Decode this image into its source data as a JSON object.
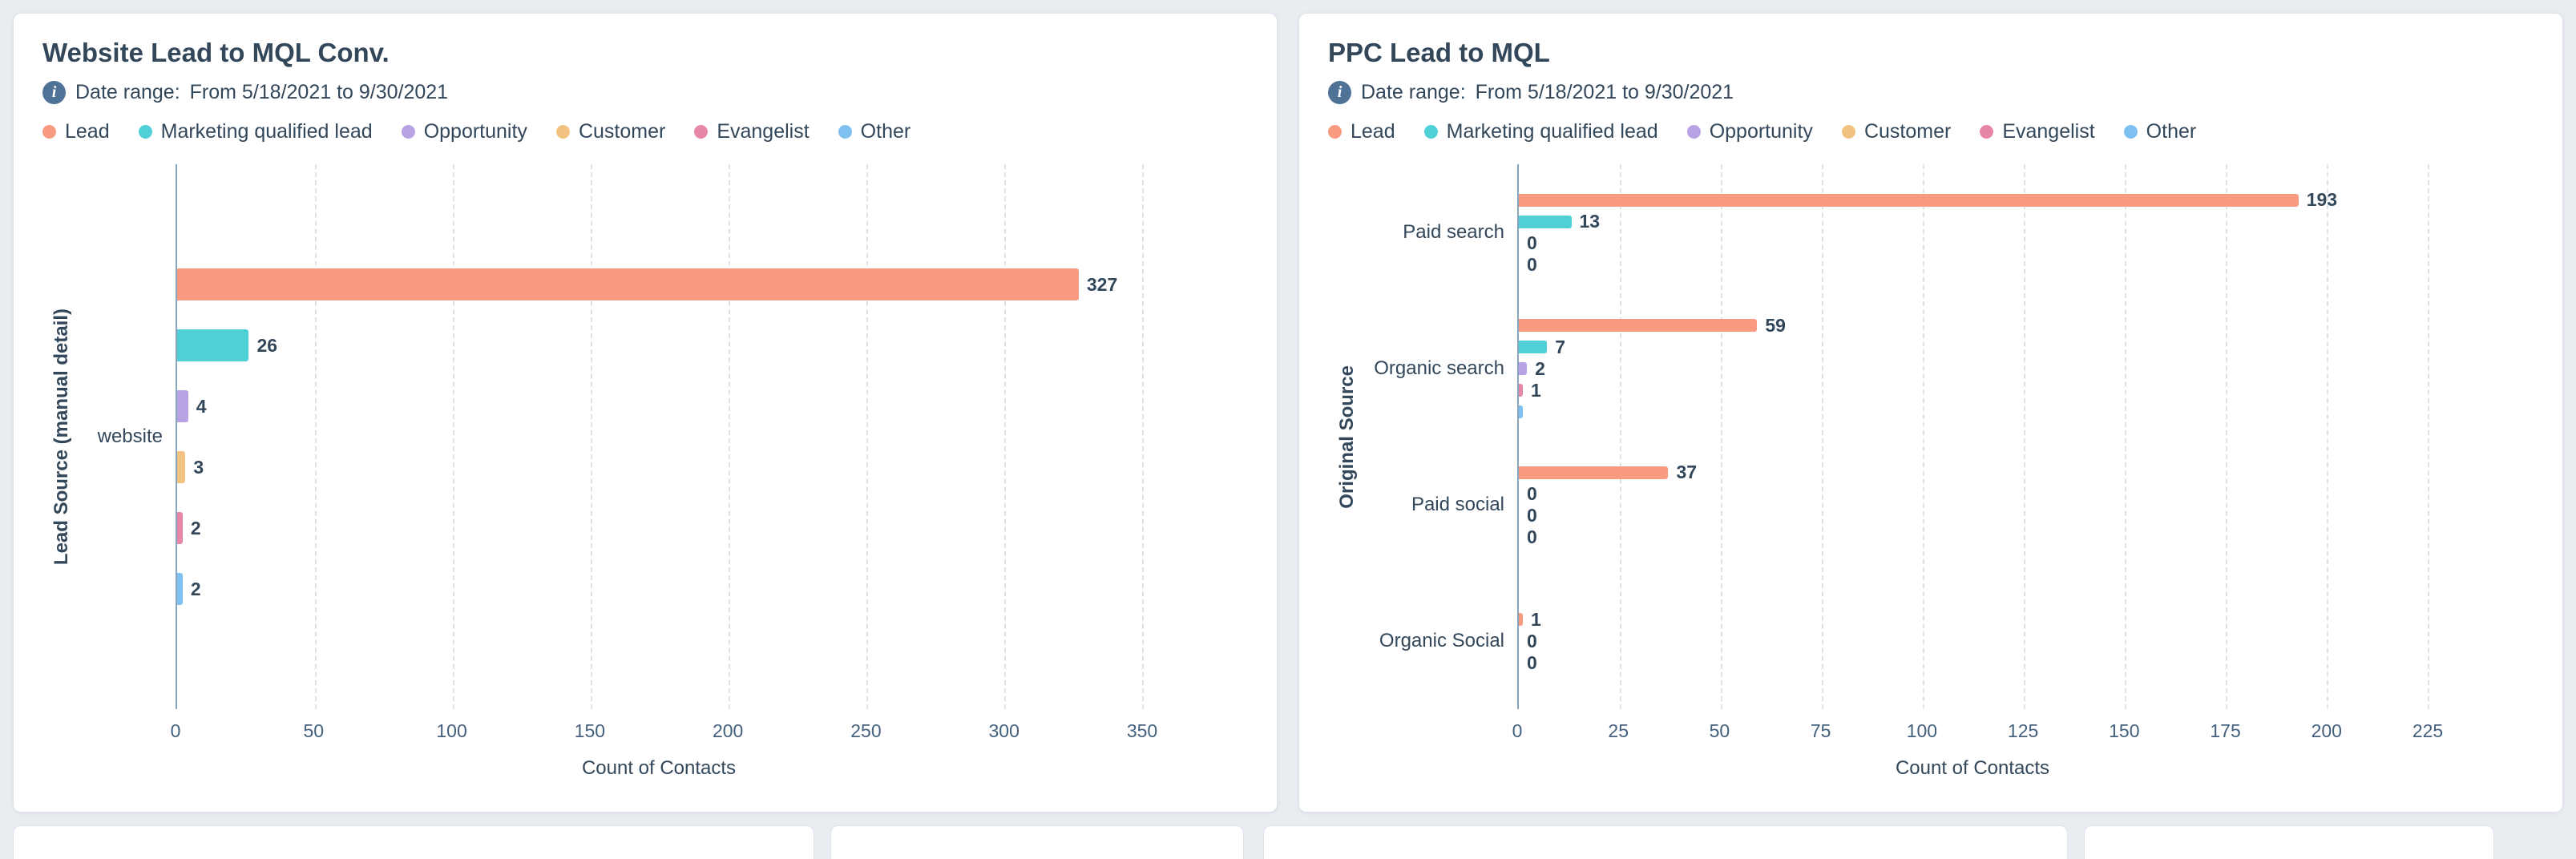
{
  "palette": {
    "page_bg": "#e9edf2",
    "card_bg": "#ffffff",
    "card_border": "#dfe3eb",
    "text": "#33475b",
    "tick_text": "#44607d",
    "axis_line": "#8ba4bd",
    "gridline": "#dce3eb",
    "info_icon": "#4f7396"
  },
  "series_colors": {
    "Lead": "#f89b80",
    "Marketing qualified lead": "#4fd0d7",
    "Opportunity": "#b7a2e3",
    "Customer": "#f2c380",
    "Evangelist": "#e886a8",
    "Other": "#7fc0f2"
  },
  "cards": [
    {
      "title": "Website Lead to MQL Conv.",
      "date_range_label": "Date range:",
      "date_range_value": "From 5/18/2021 to 9/30/2021",
      "legend": [
        "Lead",
        "Marketing qualified lead",
        "Opportunity",
        "Customer",
        "Evangelist",
        "Other"
      ]
    },
    {
      "title": "PPC Lead to MQL",
      "date_range_label": "Date range:",
      "date_range_value": "From 5/18/2021 to 9/30/2021",
      "legend": [
        "Lead",
        "Marketing qualified lead",
        "Opportunity",
        "Customer",
        "Evangelist",
        "Other"
      ]
    }
  ],
  "chart_data": [
    {
      "type": "bar",
      "orientation": "horizontal",
      "title": "Website Lead to MQL Conv.",
      "xlabel": "Count of Contacts",
      "ylabel": "Lead Source (manual detail)",
      "xlim": [
        0,
        350
      ],
      "xticks": [
        0,
        50,
        100,
        150,
        200,
        250,
        300,
        350
      ],
      "grid": "vertical-dashed",
      "legend_position": "top",
      "categories": [
        "website"
      ],
      "groups": [
        {
          "category": "website",
          "bars": [
            {
              "series": "Lead",
              "value": 327,
              "label": "327"
            },
            {
              "series": "Marketing qualified lead",
              "value": 26,
              "label": "26"
            },
            {
              "series": "Opportunity",
              "value": 4,
              "label": "4"
            },
            {
              "series": "Customer",
              "value": 3,
              "label": "3"
            },
            {
              "series": "Evangelist",
              "value": 2,
              "label": "2"
            },
            {
              "series": "Other",
              "value": 2,
              "label": "2"
            }
          ]
        }
      ]
    },
    {
      "type": "bar",
      "orientation": "horizontal",
      "title": "PPC Lead to MQL",
      "xlabel": "Count of Contacts",
      "ylabel": "Original Source",
      "xlim": [
        0,
        225
      ],
      "xticks": [
        0,
        25,
        50,
        75,
        100,
        125,
        150,
        175,
        200,
        225
      ],
      "grid": "vertical-dashed",
      "legend_position": "top",
      "categories": [
        "Paid search",
        "Organic search",
        "Paid social",
        "Organic Social"
      ],
      "groups": [
        {
          "category": "Paid search",
          "bars": [
            {
              "series": "Lead",
              "value": 193,
              "label": "193"
            },
            {
              "series": "Marketing qualified lead",
              "value": 13,
              "label": "13"
            },
            {
              "series": "Opportunity",
              "value": 0,
              "label": "0"
            },
            {
              "series": "Customer",
              "value": 0,
              "label": "0"
            }
          ]
        },
        {
          "category": "Organic search",
          "bars": [
            {
              "series": "Lead",
              "value": 59,
              "label": "59"
            },
            {
              "series": "Marketing qualified lead",
              "value": 7,
              "label": "7"
            },
            {
              "series": "Opportunity",
              "value": 2,
              "label": "2"
            },
            {
              "series": "Evangelist",
              "value": 1,
              "label": "1"
            },
            {
              "series": "Other",
              "value": 1,
              "label": ""
            }
          ]
        },
        {
          "category": "Paid social",
          "bars": [
            {
              "series": "Lead",
              "value": 37,
              "label": "37"
            },
            {
              "series": "Marketing qualified lead",
              "value": 0,
              "label": "0"
            },
            {
              "series": "Opportunity",
              "value": 0,
              "label": "0"
            },
            {
              "series": "Customer",
              "value": 0,
              "label": "0"
            }
          ]
        },
        {
          "category": "Organic Social",
          "bars": [
            {
              "series": "Lead",
              "value": 1,
              "label": "1"
            },
            {
              "series": "Marketing qualified lead",
              "value": 0,
              "label": "0"
            },
            {
              "series": "Opportunity",
              "value": 0,
              "label": "0"
            }
          ]
        }
      ]
    }
  ]
}
